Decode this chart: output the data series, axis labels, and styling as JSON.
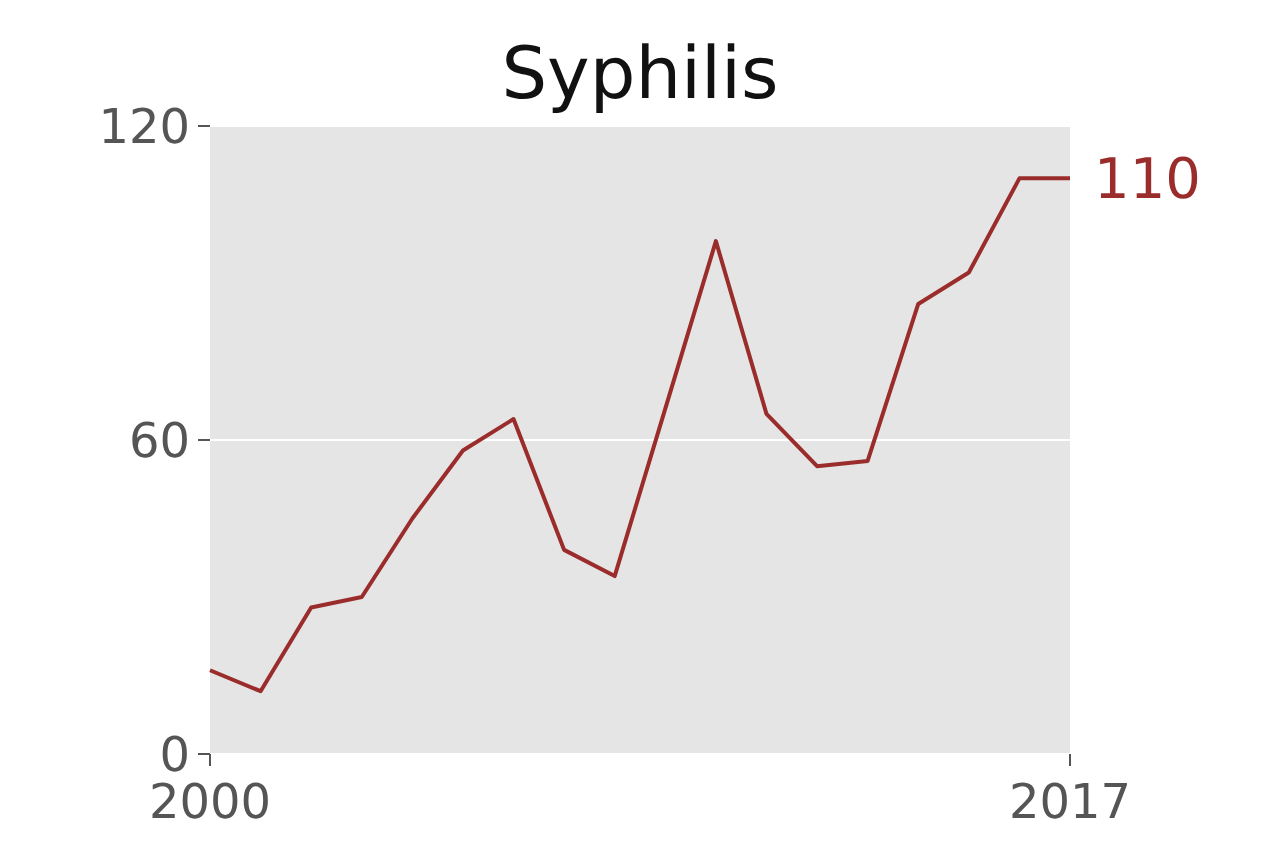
{
  "chart_data": {
    "type": "line",
    "title": "Syphilis",
    "x": [
      2000,
      2001,
      2002,
      2003,
      2004,
      2005,
      2006,
      2007,
      2008,
      2009,
      2010,
      2011,
      2012,
      2013,
      2014,
      2015,
      2016,
      2017
    ],
    "series": [
      {
        "color": "#9b2c2c",
        "values": [
          16,
          12,
          28,
          30,
          45,
          58,
          64,
          39,
          34,
          66,
          98,
          65,
          55,
          56,
          86,
          92,
          110,
          110
        ]
      }
    ],
    "xlim": [
      2000,
      2017
    ],
    "xticks": [
      2000,
      2017
    ],
    "ylim": [
      0,
      120
    ],
    "yticks": [
      0,
      60,
      120
    ],
    "grid": "y",
    "annotations": [
      {
        "text": "110",
        "x": 2017,
        "y": 110
      }
    ]
  }
}
